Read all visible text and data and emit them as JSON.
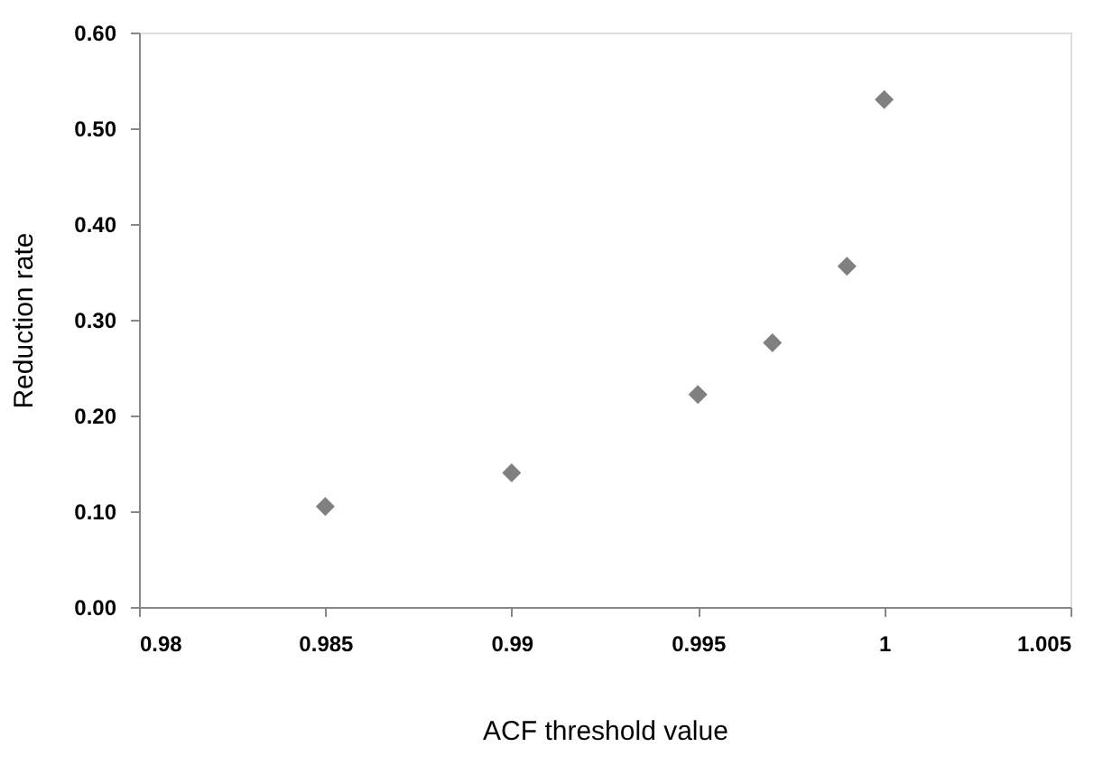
{
  "chart_data": {
    "type": "scatter",
    "xlabel": "ACF threshold value",
    "ylabel": "Reduction rate",
    "x": [
      0.985,
      0.99,
      0.995,
      0.997,
      0.999,
      1.0
    ],
    "series": [
      {
        "color": "#808080",
        "values": [
          0.105,
          0.14,
          0.222,
          0.276,
          0.356,
          0.53
        ]
      }
    ],
    "marker": "diamond",
    "grid": false,
    "xlim": [
      0.98,
      1.005
    ],
    "xticks": [
      0.98,
      0.985,
      0.99,
      0.995,
      1,
      1.005
    ],
    "ylim": [
      0,
      0.6
    ],
    "yticks": [
      {
        "value": 0,
        "label": "0.00"
      },
      {
        "value": 0.1,
        "label": "0.10"
      },
      {
        "value": 0.2,
        "label": "0.20"
      },
      {
        "value": 0.3,
        "label": "0.30"
      },
      {
        "value": 0.4,
        "label": "0.40"
      },
      {
        "value": 0.5,
        "label": "0.50"
      },
      {
        "value": 0.6,
        "label": "0.60"
      }
    ]
  }
}
